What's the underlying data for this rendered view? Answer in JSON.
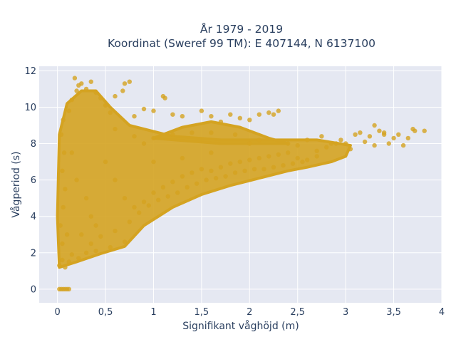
{
  "chart_data": {
    "type": "scatter",
    "title_lines": [
      "År 1979 - 2019",
      "Koordinat (Sweref 99 TM): E 407144, N 6137100"
    ],
    "xlabel": "Signifikant våghöjd (m)",
    "ylabel": "Vågperiod (s)",
    "xlim": [
      -0.19,
      4.0
    ],
    "ylim": [
      -0.75,
      12.25
    ],
    "x_ticks": [
      0,
      0.5,
      1,
      1.5,
      2,
      2.5,
      3,
      3.5,
      4
    ],
    "x_tick_labels": [
      "0",
      "0,5",
      "1",
      "1,5",
      "2",
      "2,5",
      "3",
      "3,5",
      "4"
    ],
    "y_ticks": [
      0,
      2,
      4,
      6,
      8,
      10,
      12
    ],
    "y_tick_labels": [
      "0",
      "2",
      "4",
      "6",
      "8",
      "10",
      "12"
    ],
    "grid": true,
    "colors": {
      "marker": "#d4a321",
      "plot_background": "#e5e8f2",
      "grid": "#ffffff",
      "text": "#2a3f5f"
    },
    "series": [
      {
        "points": [
          [
            0.02,
            0.0
          ],
          [
            0.04,
            0.0
          ],
          [
            0.06,
            0.0
          ],
          [
            0.08,
            0.0
          ],
          [
            0.1,
            0.0
          ],
          [
            0.12,
            0.0
          ],
          [
            0.02,
            1.3
          ],
          [
            0.05,
            1.6
          ],
          [
            0.08,
            1.2
          ],
          [
            0.12,
            1.5
          ],
          [
            0.15,
            1.9
          ],
          [
            0.22,
            1.7
          ],
          [
            0.3,
            2.0
          ],
          [
            0.4,
            2.1
          ],
          [
            0.55,
            2.3
          ],
          [
            0.7,
            2.6
          ],
          [
            0.05,
            2.5
          ],
          [
            0.1,
            3.0
          ],
          [
            0.03,
            3.5
          ],
          [
            0.06,
            4.5
          ],
          [
            0.08,
            5.5
          ],
          [
            0.05,
            6.5
          ],
          [
            0.07,
            7.5
          ],
          [
            0.04,
            8.5
          ],
          [
            0.06,
            9.3
          ],
          [
            0.12,
            9.8
          ],
          [
            0.15,
            10.4
          ],
          [
            0.2,
            10.9
          ],
          [
            0.25,
            11.3
          ],
          [
            0.3,
            11.0
          ],
          [
            0.18,
            11.6
          ],
          [
            0.22,
            11.2
          ],
          [
            0.35,
            11.4
          ],
          [
            0.4,
            10.8
          ],
          [
            0.45,
            10.5
          ],
          [
            0.5,
            10.1
          ],
          [
            0.55,
            9.7
          ],
          [
            0.6,
            10.6
          ],
          [
            0.7,
            11.3
          ],
          [
            0.75,
            11.4
          ],
          [
            0.68,
            10.9
          ],
          [
            0.8,
            9.5
          ],
          [
            1.1,
            10.6
          ],
          [
            1.12,
            10.5
          ],
          [
            1.0,
            9.8
          ],
          [
            0.9,
            9.9
          ],
          [
            1.2,
            9.6
          ],
          [
            1.3,
            9.5
          ],
          [
            0.2,
            6.0
          ],
          [
            0.3,
            5.0
          ],
          [
            0.35,
            4.0
          ],
          [
            0.4,
            3.5
          ],
          [
            0.5,
            7.0
          ],
          [
            0.6,
            6.0
          ],
          [
            0.7,
            5.0
          ],
          [
            0.8,
            4.5
          ],
          [
            0.9,
            4.8
          ],
          [
            1.0,
            5.3
          ],
          [
            1.1,
            5.6
          ],
          [
            1.2,
            5.9
          ],
          [
            1.3,
            6.2
          ],
          [
            1.4,
            6.4
          ],
          [
            1.5,
            6.6
          ],
          [
            1.6,
            6.5
          ],
          [
            1.7,
            6.7
          ],
          [
            1.8,
            6.9
          ],
          [
            1.9,
            7.0
          ],
          [
            2.0,
            7.1
          ],
          [
            2.1,
            7.2
          ],
          [
            2.2,
            7.3
          ],
          [
            2.3,
            7.4
          ],
          [
            2.4,
            7.5
          ],
          [
            1.5,
            9.8
          ],
          [
            1.6,
            9.5
          ],
          [
            1.7,
            9.2
          ],
          [
            1.8,
            9.6
          ],
          [
            1.9,
            9.4
          ],
          [
            2.0,
            9.3
          ],
          [
            2.1,
            9.6
          ],
          [
            2.2,
            9.7
          ],
          [
            2.3,
            9.8
          ],
          [
            2.25,
            9.6
          ],
          [
            1.85,
            8.5
          ],
          [
            2.1,
            8.2
          ],
          [
            2.4,
            8.0
          ],
          [
            2.5,
            7.9
          ],
          [
            2.6,
            8.2
          ],
          [
            2.7,
            7.6
          ],
          [
            2.8,
            7.8
          ],
          [
            2.75,
            8.4
          ],
          [
            2.9,
            8.0
          ],
          [
            3.0,
            8.0
          ],
          [
            3.05,
            7.7
          ],
          [
            3.1,
            8.5
          ],
          [
            3.15,
            8.6
          ],
          [
            3.25,
            8.4
          ],
          [
            3.3,
            7.9
          ],
          [
            3.35,
            8.7
          ],
          [
            3.4,
            8.5
          ],
          [
            3.45,
            8.0
          ],
          [
            3.5,
            8.3
          ],
          [
            3.55,
            8.5
          ],
          [
            3.6,
            7.9
          ],
          [
            3.65,
            8.3
          ],
          [
            3.4,
            8.6
          ],
          [
            3.7,
            8.8
          ],
          [
            3.72,
            8.7
          ],
          [
            3.82,
            8.7
          ],
          [
            3.3,
            9.0
          ],
          [
            3.2,
            8.1
          ],
          [
            2.95,
            8.2
          ],
          [
            2.85,
            8.0
          ],
          [
            2.5,
            7.2
          ],
          [
            2.6,
            7.1
          ],
          [
            2.7,
            7.3
          ],
          [
            1.0,
            8.3
          ],
          [
            1.2,
            8.5
          ],
          [
            1.4,
            8.6
          ],
          [
            1.6,
            8.6
          ],
          [
            0.9,
            8.0
          ],
          [
            1.0,
            7.0
          ],
          [
            1.3,
            7.2
          ],
          [
            1.6,
            7.5
          ],
          [
            2.0,
            8.0
          ],
          [
            0.6,
            8.8
          ],
          [
            0.8,
            8.4
          ],
          [
            0.15,
            7.5
          ],
          [
            0.25,
            3.0
          ],
          [
            0.35,
            2.5
          ],
          [
            0.45,
            2.9
          ],
          [
            0.6,
            3.2
          ],
          [
            0.75,
            3.7
          ],
          [
            0.85,
            4.2
          ],
          [
            0.95,
            4.6
          ],
          [
            1.05,
            4.9
          ],
          [
            1.15,
            5.1
          ],
          [
            1.25,
            5.3
          ],
          [
            1.35,
            5.6
          ],
          [
            1.45,
            5.8
          ],
          [
            1.55,
            6.0
          ],
          [
            1.65,
            6.1
          ],
          [
            1.75,
            6.2
          ],
          [
            1.85,
            6.4
          ],
          [
            1.95,
            6.5
          ],
          [
            2.05,
            6.6
          ],
          [
            2.15,
            6.6
          ],
          [
            2.25,
            6.7
          ],
          [
            2.35,
            6.8
          ],
          [
            2.45,
            6.9
          ],
          [
            2.55,
            7.0
          ]
        ]
      }
    ]
  }
}
